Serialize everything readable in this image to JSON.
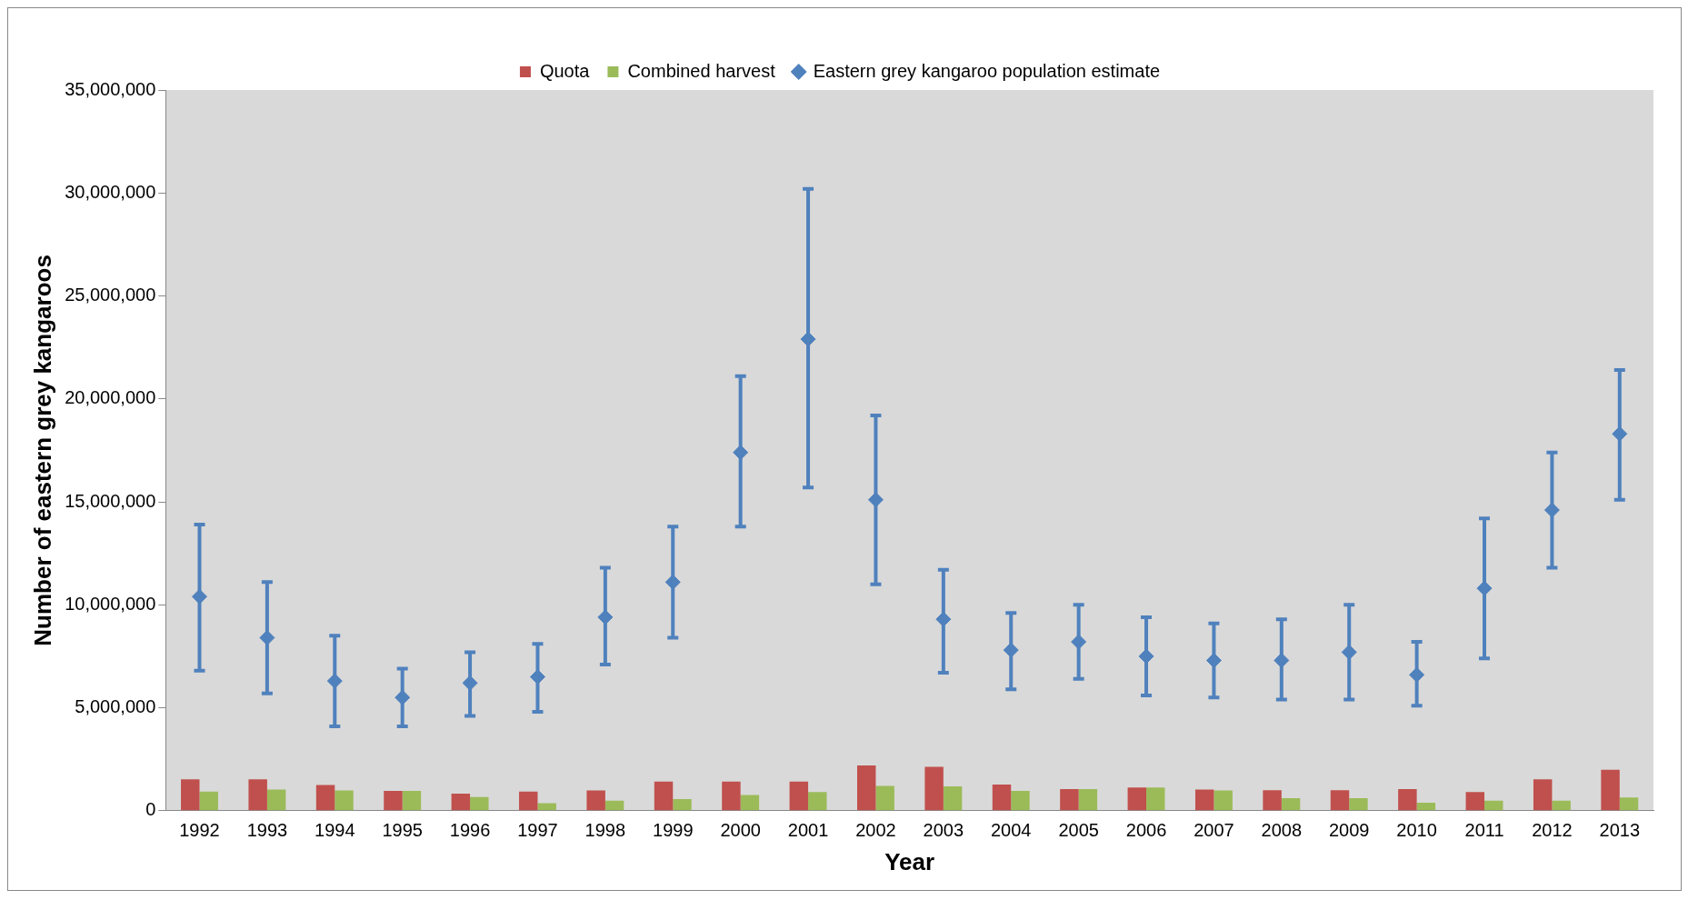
{
  "chart_data": {
    "type": "bar",
    "xlabel": "Year",
    "ylabel": "Number of eastern grey kangaroos",
    "categories": [
      "1992",
      "1993",
      "1994",
      "1995",
      "1996",
      "1997",
      "1998",
      "1999",
      "2000",
      "2001",
      "2002",
      "2003",
      "2004",
      "2005",
      "2006",
      "2007",
      "2008",
      "2009",
      "2010",
      "2011",
      "2012",
      "2013"
    ],
    "series": [
      {
        "name": "Quota",
        "color": "#c0504d",
        "values": [
          1520000,
          1520000,
          1250000,
          960000,
          830000,
          930000,
          980000,
          1420000,
          1420000,
          1420000,
          2200000,
          2130000,
          1270000,
          1050000,
          1130000,
          1030000,
          1000000,
          1000000,
          1050000,
          910000,
          1520000,
          1990000
        ]
      },
      {
        "name": "Combined harvest",
        "color": "#9bbb59",
        "values": [
          930000,
          1030000,
          980000,
          960000,
          660000,
          370000,
          490000,
          560000,
          760000,
          910000,
          1200000,
          1180000,
          960000,
          1050000,
          1130000,
          980000,
          610000,
          610000,
          390000,
          490000,
          490000,
          640000
        ]
      },
      {
        "name": "Eastern grey kangaroo population estimate",
        "type": "scatter",
        "color": "#4f81bd",
        "marker": "diamond",
        "values": [
          10400000,
          8400000,
          6300000,
          5500000,
          6200000,
          6500000,
          9400000,
          11100000,
          17400000,
          22900000,
          15100000,
          9300000,
          7800000,
          8200000,
          7500000,
          7300000,
          7300000,
          7700000,
          6600000,
          10800000,
          14600000,
          18300000
        ],
        "errors": [
          [
            6800000,
            13900000
          ],
          [
            5700000,
            11100000
          ],
          [
            4100000,
            8500000
          ],
          [
            4100000,
            6900000
          ],
          [
            4600000,
            7700000
          ],
          [
            4800000,
            8100000
          ],
          [
            7100000,
            11800000
          ],
          [
            8400000,
            13800000
          ],
          [
            13800000,
            21100000
          ],
          [
            15700000,
            30200000
          ],
          [
            11000000,
            19200000
          ],
          [
            6700000,
            11700000
          ],
          [
            5900000,
            9600000
          ],
          [
            6400000,
            10000000
          ],
          [
            5600000,
            9400000
          ],
          [
            5500000,
            9100000
          ],
          [
            5400000,
            9300000
          ],
          [
            5400000,
            10000000
          ],
          [
            5100000,
            8200000
          ],
          [
            7400000,
            14200000
          ],
          [
            11800000,
            17400000
          ],
          [
            15100000,
            21400000
          ]
        ]
      }
    ],
    "ylim": [
      0,
      35000000
    ],
    "yticks": [
      0,
      {
        "value": 5000000,
        "label": "5,000,000"
      },
      {
        "value": 10000000,
        "label": "10,000,000"
      },
      {
        "value": 15000000,
        "label": "15,000,000"
      },
      {
        "value": 20000000,
        "label": "20,000,000"
      },
      {
        "value": 25000000,
        "label": "25,000,000"
      },
      {
        "value": 30000000,
        "label": "30,000,000"
      },
      {
        "value": 35000000,
        "label": "35,000,000"
      }
    ],
    "grid": false,
    "legend": "top"
  }
}
